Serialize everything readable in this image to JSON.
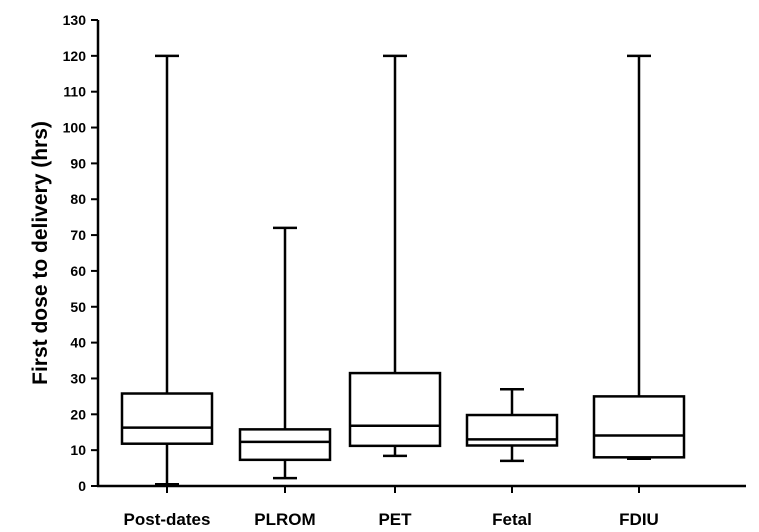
{
  "chart_data": {
    "type": "box",
    "title": "",
    "xlabel": "",
    "ylabel": "First dose to delivery  (hrs)",
    "ylim": [
      0,
      130
    ],
    "yticks": [
      0,
      10,
      20,
      30,
      40,
      50,
      60,
      70,
      80,
      90,
      100,
      110,
      120,
      130
    ],
    "grid": false,
    "categories": [
      "Post-dates",
      "PLROM",
      "PET",
      "Fetal",
      "FDIU"
    ],
    "boxes": [
      {
        "min": 0.5,
        "q1": 11.8,
        "median": 16.3,
        "q3": 25.8,
        "max": 120
      },
      {
        "min": 2.2,
        "q1": 7.3,
        "median": 12.3,
        "q3": 15.8,
        "max": 72
      },
      {
        "min": 8.4,
        "q1": 11.2,
        "median": 16.8,
        "q3": 31.5,
        "max": 120
      },
      {
        "min": 7.0,
        "q1": 11.3,
        "median": 13.0,
        "q3": 19.8,
        "max": 27
      },
      {
        "min": 7.6,
        "q1": 8.0,
        "median": 14.1,
        "q3": 25.0,
        "max": 120
      }
    ]
  }
}
